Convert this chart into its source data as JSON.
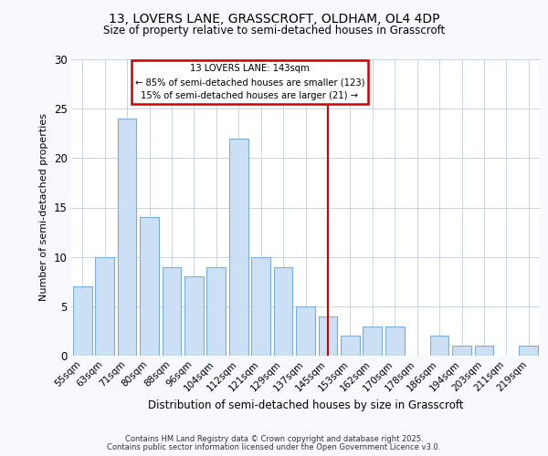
{
  "title1": "13, LOVERS LANE, GRASSCROFT, OLDHAM, OL4 4DP",
  "title2": "Size of property relative to semi-detached houses in Grasscroft",
  "xlabel": "Distribution of semi-detached houses by size in Grasscroft",
  "ylabel": "Number of semi-detached properties",
  "categories": [
    "55sqm",
    "63sqm",
    "71sqm",
    "80sqm",
    "88sqm",
    "96sqm",
    "104sqm",
    "112sqm",
    "121sqm",
    "129sqm",
    "137sqm",
    "145sqm",
    "153sqm",
    "162sqm",
    "170sqm",
    "178sqm",
    "186sqm",
    "194sqm",
    "203sqm",
    "211sqm",
    "219sqm"
  ],
  "values": [
    7,
    10,
    24,
    14,
    9,
    8,
    9,
    22,
    10,
    9,
    5,
    4,
    2,
    3,
    3,
    0,
    2,
    1,
    1,
    0,
    1
  ],
  "bar_color": "#cce0f5",
  "bar_edge_color": "#7aadda",
  "property_label": "13 LOVERS LANE: 143sqm",
  "annotation_line1": "← 85% of semi-detached houses are smaller (123)",
  "annotation_line2": "15% of semi-detached houses are larger (21) →",
  "red_line_color": "#cc0000",
  "annotation_box_edge_color": "#cc0000",
  "ylim": [
    0,
    30
  ],
  "yticks": [
    0,
    5,
    10,
    15,
    20,
    25,
    30
  ],
  "bg_color": "#f7f9fc",
  "plot_bg_color": "#ffffff",
  "grid_color": "#c8d4e0",
  "footer1": "Contains HM Land Registry data © Crown copyright and database right 2025.",
  "footer2": "Contains public sector information licensed under the Open Government Licence v3.0."
}
